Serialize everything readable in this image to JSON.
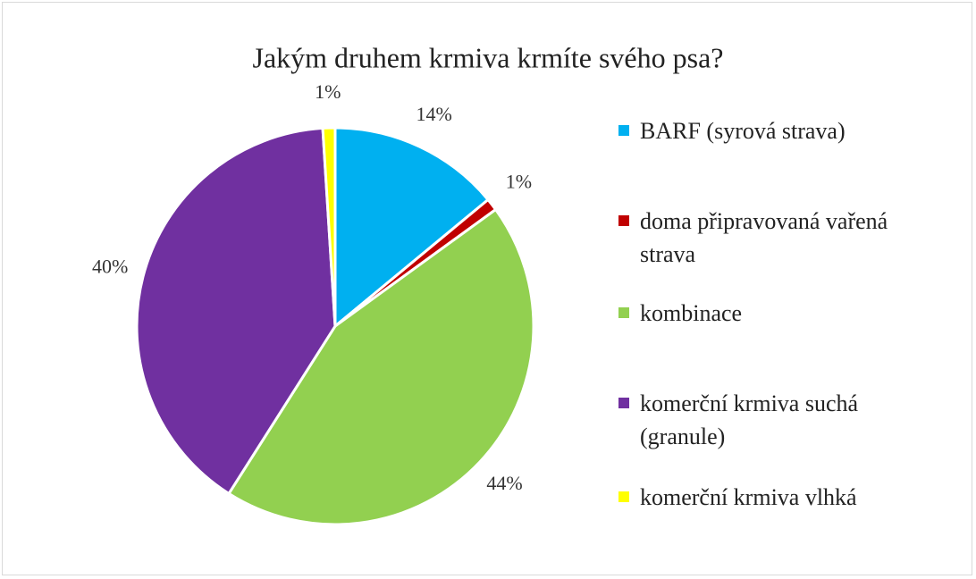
{
  "chart_data": {
    "type": "pie",
    "title": "Jakým druhem krmiva krmíte svého psa?",
    "categories": [
      "BARF (syrová strava)",
      "doma připravovaná vařená strava",
      "kombinace",
      "komerční krmiva suchá (granule)",
      "komerční krmiva vlhká"
    ],
    "values": [
      14,
      1,
      44,
      40,
      1
    ],
    "value_labels": [
      "14%",
      "1%",
      "44%",
      "40%",
      "1%"
    ],
    "colors": [
      "#00b0f0",
      "#c00000",
      "#92d050",
      "#7030a0",
      "#ffff00"
    ],
    "legend": "right"
  }
}
